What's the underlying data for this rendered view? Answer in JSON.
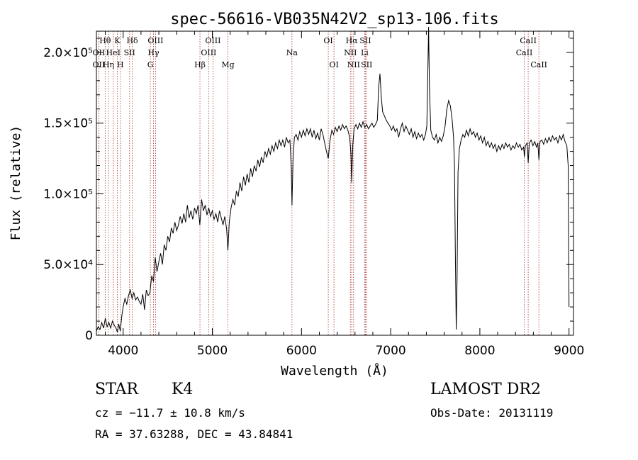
{
  "chart_data": {
    "type": "line",
    "title": "spec-56616-VB035N42V2_sp13-106.fits",
    "xlabel": "Wavelength (Å)",
    "ylabel": "Flux (relative)",
    "xlim": [
      3700,
      9050
    ],
    "ylim": [
      0,
      215000
    ],
    "x_ticks": [
      {
        "v": 4000,
        "label": "4000"
      },
      {
        "v": 5000,
        "label": "5000"
      },
      {
        "v": 6000,
        "label": "6000"
      },
      {
        "v": 7000,
        "label": "7000"
      },
      {
        "v": 8000,
        "label": "8000"
      },
      {
        "v": 9000,
        "label": "9000"
      }
    ],
    "y_ticks": [
      {
        "v": 0,
        "label": "0"
      },
      {
        "v": 50000,
        "label": "5.0×10⁴"
      },
      {
        "v": 100000,
        "label": "1.0×10⁵"
      },
      {
        "v": 150000,
        "label": "1.5×10⁵"
      },
      {
        "v": 200000,
        "label": "2.0×10⁵"
      }
    ],
    "x_minor_step": 200,
    "y_minor_step": 10000,
    "lines": [
      {
        "label": "Hθ",
        "x": 3798,
        "row": 0
      },
      {
        "label": "OII",
        "x": 3727,
        "row": 1
      },
      {
        "label": "Hη",
        "x": 3835,
        "row": 2
      },
      {
        "label": "OII",
        "x": 3727,
        "row": 2
      },
      {
        "label": "K",
        "x": 3934,
        "row": 0
      },
      {
        "label": "H",
        "x": 3969,
        "row": 2
      },
      {
        "label": "HeI",
        "x": 3889,
        "row": 1
      },
      {
        "label": "SII",
        "x": 4072,
        "row": 1
      },
      {
        "label": "Hδ",
        "x": 4102,
        "row": 0
      },
      {
        "label": "OIII",
        "x": 4363,
        "row": 0
      },
      {
        "label": "Hγ",
        "x": 4340,
        "row": 1
      },
      {
        "label": "G",
        "x": 4305,
        "row": 2
      },
      {
        "label": "Hβ",
        "x": 4861,
        "row": 2
      },
      {
        "label": "OIII",
        "x": 5007,
        "row": 0
      },
      {
        "label": "OIII",
        "x": 4959,
        "row": 1
      },
      {
        "label": "Mg",
        "x": 5175,
        "row": 2
      },
      {
        "label": "Na",
        "x": 5893,
        "row": 1
      },
      {
        "label": "OI",
        "x": 6300,
        "row": 0
      },
      {
        "label": "OI",
        "x": 6364,
        "row": 2
      },
      {
        "label": "Hα",
        "x": 6563,
        "row": 0
      },
      {
        "label": "NII",
        "x": 6548,
        "row": 1
      },
      {
        "label": "NII",
        "x": 6584,
        "row": 2
      },
      {
        "label": "SII",
        "x": 6717,
        "row": 0
      },
      {
        "label": "Li",
        "x": 6708,
        "row": 1
      },
      {
        "label": "SII",
        "x": 6731,
        "row": 2
      },
      {
        "label": "CaII",
        "x": 8542,
        "row": 0
      },
      {
        "label": "CaII",
        "x": 8498,
        "row": 1
      },
      {
        "label": "CaII",
        "x": 8662,
        "row": 2
      }
    ],
    "spectrum": [
      [
        3700,
        3000
      ],
      [
        3720,
        6000
      ],
      [
        3740,
        4000
      ],
      [
        3760,
        9000
      ],
      [
        3780,
        5000
      ],
      [
        3800,
        12000
      ],
      [
        3820,
        6000
      ],
      [
        3840,
        9000
      ],
      [
        3860,
        5000
      ],
      [
        3880,
        10000
      ],
      [
        3900,
        7000
      ],
      [
        3920,
        5000
      ],
      [
        3935,
        2000
      ],
      [
        3950,
        8000
      ],
      [
        3968,
        3000
      ],
      [
        3985,
        14000
      ],
      [
        4000,
        20000
      ],
      [
        4020,
        26000
      ],
      [
        4040,
        22000
      ],
      [
        4060,
        28000
      ],
      [
        4080,
        32000
      ],
      [
        4100,
        26000
      ],
      [
        4120,
        30000
      ],
      [
        4140,
        25000
      ],
      [
        4160,
        27000
      ],
      [
        4180,
        24000
      ],
      [
        4200,
        22000
      ],
      [
        4220,
        29000
      ],
      [
        4240,
        18000
      ],
      [
        4260,
        32000
      ],
      [
        4280,
        28000
      ],
      [
        4300,
        30000
      ],
      [
        4320,
        42000
      ],
      [
        4340,
        38000
      ],
      [
        4360,
        55000
      ],
      [
        4380,
        45000
      ],
      [
        4400,
        52000
      ],
      [
        4420,
        58000
      ],
      [
        4440,
        50000
      ],
      [
        4460,
        64000
      ],
      [
        4480,
        60000
      ],
      [
        4500,
        70000
      ],
      [
        4520,
        66000
      ],
      [
        4540,
        76000
      ],
      [
        4560,
        72000
      ],
      [
        4580,
        80000
      ],
      [
        4600,
        74000
      ],
      [
        4620,
        78000
      ],
      [
        4640,
        84000
      ],
      [
        4660,
        79000
      ],
      [
        4680,
        86000
      ],
      [
        4700,
        80000
      ],
      [
        4720,
        92000
      ],
      [
        4740,
        83000
      ],
      [
        4760,
        88000
      ],
      [
        4780,
        82000
      ],
      [
        4800,
        90000
      ],
      [
        4820,
        86000
      ],
      [
        4840,
        92000
      ],
      [
        4860,
        78000
      ],
      [
        4880,
        96000
      ],
      [
        4900,
        88000
      ],
      [
        4920,
        92000
      ],
      [
        4940,
        85000
      ],
      [
        4960,
        90000
      ],
      [
        4980,
        84000
      ],
      [
        5000,
        88000
      ],
      [
        5020,
        82000
      ],
      [
        5040,
        86000
      ],
      [
        5060,
        80000
      ],
      [
        5080,
        88000
      ],
      [
        5100,
        83000
      ],
      [
        5120,
        78000
      ],
      [
        5140,
        84000
      ],
      [
        5160,
        75000
      ],
      [
        5175,
        60000
      ],
      [
        5190,
        80000
      ],
      [
        5210,
        90000
      ],
      [
        5230,
        96000
      ],
      [
        5250,
        92000
      ],
      [
        5270,
        102000
      ],
      [
        5290,
        98000
      ],
      [
        5310,
        108000
      ],
      [
        5330,
        102000
      ],
      [
        5350,
        112000
      ],
      [
        5370,
        106000
      ],
      [
        5390,
        114000
      ],
      [
        5410,
        108000
      ],
      [
        5430,
        118000
      ],
      [
        5450,
        112000
      ],
      [
        5470,
        120000
      ],
      [
        5490,
        116000
      ],
      [
        5510,
        124000
      ],
      [
        5530,
        119000
      ],
      [
        5550,
        126000
      ],
      [
        5570,
        122000
      ],
      [
        5590,
        130000
      ],
      [
        5610,
        126000
      ],
      [
        5630,
        132000
      ],
      [
        5650,
        128000
      ],
      [
        5670,
        134000
      ],
      [
        5690,
        130000
      ],
      [
        5710,
        136000
      ],
      [
        5730,
        132000
      ],
      [
        5750,
        138000
      ],
      [
        5770,
        134000
      ],
      [
        5790,
        138000
      ],
      [
        5810,
        133000
      ],
      [
        5830,
        140000
      ],
      [
        5850,
        136000
      ],
      [
        5870,
        138000
      ],
      [
        5885,
        118000
      ],
      [
        5893,
        92000
      ],
      [
        5905,
        125000
      ],
      [
        5920,
        140000
      ],
      [
        5940,
        142000
      ],
      [
        5960,
        138000
      ],
      [
        5980,
        144000
      ],
      [
        6000,
        140000
      ],
      [
        6020,
        145000
      ],
      [
        6040,
        141000
      ],
      [
        6060,
        146000
      ],
      [
        6080,
        142000
      ],
      [
        6100,
        146000
      ],
      [
        6120,
        140000
      ],
      [
        6140,
        145000
      ],
      [
        6160,
        139000
      ],
      [
        6180,
        143000
      ],
      [
        6200,
        138000
      ],
      [
        6220,
        146000
      ],
      [
        6240,
        142000
      ],
      [
        6260,
        136000
      ],
      [
        6280,
        130000
      ],
      [
        6300,
        125000
      ],
      [
        6320,
        138000
      ],
      [
        6340,
        145000
      ],
      [
        6360,
        142000
      ],
      [
        6380,
        147000
      ],
      [
        6400,
        144000
      ],
      [
        6420,
        148000
      ],
      [
        6440,
        145000
      ],
      [
        6460,
        149000
      ],
      [
        6480,
        146000
      ],
      [
        6500,
        148000
      ],
      [
        6520,
        145000
      ],
      [
        6540,
        140000
      ],
      [
        6555,
        128000
      ],
      [
        6563,
        108000
      ],
      [
        6575,
        135000
      ],
      [
        6590,
        146000
      ],
      [
        6610,
        149000
      ],
      [
        6630,
        146000
      ],
      [
        6650,
        150000
      ],
      [
        6670,
        147000
      ],
      [
        6690,
        151000
      ],
      [
        6710,
        147000
      ],
      [
        6730,
        149000
      ],
      [
        6750,
        146000
      ],
      [
        6770,
        148000
      ],
      [
        6790,
        150000
      ],
      [
        6810,
        147000
      ],
      [
        6830,
        149000
      ],
      [
        6850,
        152000
      ],
      [
        6865,
        175000
      ],
      [
        6880,
        185000
      ],
      [
        6895,
        168000
      ],
      [
        6910,
        158000
      ],
      [
        6930,
        155000
      ],
      [
        6950,
        152000
      ],
      [
        6970,
        150000
      ],
      [
        6990,
        148000
      ],
      [
        7010,
        145000
      ],
      [
        7030,
        148000
      ],
      [
        7050,
        144000
      ],
      [
        7070,
        146000
      ],
      [
        7090,
        140000
      ],
      [
        7110,
        146000
      ],
      [
        7130,
        150000
      ],
      [
        7150,
        144000
      ],
      [
        7170,
        148000
      ],
      [
        7190,
        145000
      ],
      [
        7210,
        142000
      ],
      [
        7230,
        146000
      ],
      [
        7250,
        140000
      ],
      [
        7270,
        144000
      ],
      [
        7290,
        139000
      ],
      [
        7310,
        143000
      ],
      [
        7330,
        140000
      ],
      [
        7350,
        142000
      ],
      [
        7370,
        138000
      ],
      [
        7390,
        142000
      ],
      [
        7405,
        148000
      ],
      [
        7415,
        180000
      ],
      [
        7425,
        218000
      ],
      [
        7435,
        175000
      ],
      [
        7450,
        145000
      ],
      [
        7470,
        140000
      ],
      [
        7490,
        138000
      ],
      [
        7510,
        142000
      ],
      [
        7530,
        136000
      ],
      [
        7550,
        140000
      ],
      [
        7570,
        137000
      ],
      [
        7590,
        141000
      ],
      [
        7610,
        148000
      ],
      [
        7630,
        160000
      ],
      [
        7650,
        166000
      ],
      [
        7670,
        162000
      ],
      [
        7690,
        152000
      ],
      [
        7705,
        140000
      ],
      [
        7715,
        120000
      ],
      [
        7725,
        60000
      ],
      [
        7735,
        4000
      ],
      [
        7745,
        40000
      ],
      [
        7755,
        115000
      ],
      [
        7770,
        132000
      ],
      [
        7790,
        138000
      ],
      [
        7810,
        142000
      ],
      [
        7830,
        140000
      ],
      [
        7850,
        145000
      ],
      [
        7870,
        141000
      ],
      [
        7890,
        146000
      ],
      [
        7910,
        142000
      ],
      [
        7930,
        144000
      ],
      [
        7950,
        140000
      ],
      [
        7970,
        143000
      ],
      [
        7990,
        138000
      ],
      [
        8010,
        141000
      ],
      [
        8030,
        136000
      ],
      [
        8050,
        140000
      ],
      [
        8070,
        134000
      ],
      [
        8090,
        137000
      ],
      [
        8110,
        133000
      ],
      [
        8130,
        136000
      ],
      [
        8150,
        132000
      ],
      [
        8170,
        135000
      ],
      [
        8190,
        130000
      ],
      [
        8210,
        134000
      ],
      [
        8230,
        131000
      ],
      [
        8250,
        135000
      ],
      [
        8270,
        132000
      ],
      [
        8290,
        136000
      ],
      [
        8310,
        133000
      ],
      [
        8330,
        135000
      ],
      [
        8350,
        131000
      ],
      [
        8370,
        134000
      ],
      [
        8390,
        132000
      ],
      [
        8410,
        136000
      ],
      [
        8430,
        133000
      ],
      [
        8450,
        135000
      ],
      [
        8470,
        131000
      ],
      [
        8490,
        133000
      ],
      [
        8500,
        126000
      ],
      [
        8510,
        134000
      ],
      [
        8530,
        136000
      ],
      [
        8542,
        122000
      ],
      [
        8555,
        136000
      ],
      [
        8575,
        138000
      ],
      [
        8595,
        134000
      ],
      [
        8615,
        137000
      ],
      [
        8635,
        133000
      ],
      [
        8650,
        136000
      ],
      [
        8662,
        124000
      ],
      [
        8675,
        137000
      ],
      [
        8695,
        138000
      ],
      [
        8715,
        135000
      ],
      [
        8735,
        139000
      ],
      [
        8755,
        136000
      ],
      [
        8775,
        140000
      ],
      [
        8795,
        137000
      ],
      [
        8815,
        141000
      ],
      [
        8835,
        138000
      ],
      [
        8855,
        140000
      ],
      [
        8875,
        136000
      ],
      [
        8895,
        141000
      ],
      [
        8915,
        138000
      ],
      [
        8935,
        142000
      ],
      [
        8955,
        137000
      ],
      [
        8975,
        134000
      ],
      [
        8990,
        120000
      ],
      [
        9000,
        20000
      ]
    ]
  },
  "info": {
    "object_class": "STAR",
    "subclass": "K4",
    "survey": "LAMOST DR2",
    "cz": "cz = −11.7 ± 10.8 km/s",
    "obs_date": "Obs-Date: 20131119",
    "coords": "RA =  37.63288, DEC =  43.84841"
  }
}
